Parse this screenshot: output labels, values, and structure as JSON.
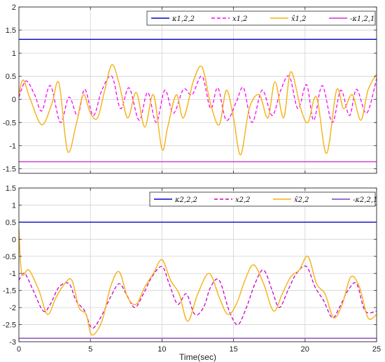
{
  "chart_data": [
    {
      "type": "line",
      "xlim": [
        0,
        25
      ],
      "ylim": [
        -1.6,
        2
      ],
      "xticks": [
        0,
        5,
        10,
        15,
        20,
        25
      ],
      "yticks": [
        -1.5,
        -1,
        -0.5,
        0,
        0.5,
        1,
        1.5,
        2
      ],
      "ytick_labels": [
        "-1.5",
        "-1",
        "-0.5",
        "0",
        "0.5",
        "1",
        "1.5",
        "2"
      ],
      "grid": true,
      "legend_position": "top-right",
      "xlabel": "",
      "series": [
        {
          "name": "κ1,2,2",
          "style": "solid",
          "color": "#0000cc",
          "x": [
            0,
            25
          ],
          "y": [
            1.3,
            1.3
          ]
        },
        {
          "name": "x1,2",
          "style": "dashed",
          "color": "#ff00ff",
          "x": [
            0,
            0.5,
            1.1,
            1.6,
            2.2,
            2.9,
            3.5,
            4.1,
            4.6,
            5.2,
            5.8,
            6.5,
            7.1,
            7.7,
            8.4,
            9.0,
            9.6,
            10.2,
            10.8,
            11.5,
            12.1,
            12.8,
            13.4,
            13.9,
            14.5,
            15.2,
            15.7,
            16.3,
            17.0,
            17.7,
            18.3,
            18.9,
            19.5,
            20.1,
            20.6,
            21.2,
            21.9,
            22.5,
            23.1,
            23.6,
            24.3,
            25.0
          ],
          "y": [
            0.05,
            0.4,
            0.1,
            -0.25,
            0.3,
            -0.5,
            0.05,
            -0.35,
            0.22,
            -0.35,
            0.2,
            0.5,
            -0.2,
            0.25,
            -0.45,
            0.15,
            -0.5,
            0.2,
            -0.3,
            0.22,
            0.1,
            0.5,
            -0.2,
            0.25,
            -0.45,
            -0.05,
            0.25,
            -0.5,
            0.2,
            -0.35,
            0.2,
            0.5,
            -0.2,
            0.32,
            -0.45,
            0.3,
            -0.5,
            0.2,
            -0.35,
            0.22,
            -0.3,
            0.45
          ]
        },
        {
          "name": "x̂1,2",
          "style": "solid",
          "color": "#f5b114",
          "x": [
            0,
            0.3,
            0.8,
            1.6,
            2.3,
            2.8,
            3.4,
            4.0,
            4.5,
            5.0,
            5.5,
            6.0,
            6.5,
            7.0,
            7.6,
            8.2,
            8.8,
            9.4,
            10.0,
            10.4,
            11.0,
            11.5,
            12.2,
            12.8,
            13.4,
            14.0,
            14.5,
            15.0,
            15.5,
            16.1,
            16.8,
            17.4,
            17.9,
            18.5,
            19.0,
            19.7,
            20.2,
            20.8,
            21.5,
            22.2,
            22.7,
            23.3,
            23.9,
            24.4,
            25.0
          ],
          "y": [
            0.1,
            0.42,
            0.0,
            -0.55,
            -0.1,
            0.35,
            -1.12,
            -0.55,
            0.1,
            -0.3,
            -0.4,
            0.2,
            0.75,
            0.35,
            -0.4,
            0.15,
            -0.6,
            0.1,
            -1.08,
            -0.6,
            0.1,
            -0.4,
            0.4,
            0.7,
            -0.1,
            -0.55,
            0.2,
            -0.4,
            -1.2,
            -0.2,
            0.1,
            -0.4,
            0.38,
            -0.4,
            0.6,
            -0.2,
            -0.5,
            0.05,
            -1.17,
            0.2,
            -0.2,
            0.1,
            -0.45,
            0.2,
            0.55
          ]
        },
        {
          "name": "-κ1,2,1",
          "style": "solid",
          "color": "#cc33cc",
          "x": [
            0,
            25
          ],
          "y": [
            -1.35,
            -1.35
          ]
        }
      ]
    },
    {
      "type": "line",
      "xlim": [
        0,
        25
      ],
      "ylim": [
        -3,
        1.5
      ],
      "xticks": [
        0,
        5,
        10,
        15,
        20,
        25
      ],
      "xtick_labels": [
        "0",
        "5",
        "10",
        "15",
        "20",
        "25"
      ],
      "yticks": [
        -3,
        -2.5,
        -2,
        -1.5,
        -1,
        -0.5,
        0,
        0.5,
        1,
        1.5
      ],
      "ytick_labels": [
        "-3",
        "-2.5",
        "-2",
        "-1.5",
        "-1",
        "-0.5",
        "0",
        "0.5",
        "1",
        "1.5"
      ],
      "grid": true,
      "legend_position": "top-right",
      "xlabel": "Time(sec)",
      "series": [
        {
          "name": "κ2,2,2",
          "style": "solid",
          "color": "#0000cc",
          "x": [
            0,
            25
          ],
          "y": [
            0.5,
            0.5
          ]
        },
        {
          "name": "x2,2",
          "style": "dashed",
          "color": "#cc00cc",
          "x": [
            0,
            0.4,
            1.0,
            1.7,
            2.2,
            2.8,
            3.5,
            4.0,
            4.6,
            5.1,
            5.7,
            6.4,
            7.0,
            7.5,
            8.1,
            8.7,
            9.3,
            10.0,
            10.5,
            11.1,
            11.7,
            12.3,
            12.9,
            13.4,
            14.0,
            14.7,
            15.3,
            15.9,
            16.5,
            17.1,
            17.7,
            18.2,
            18.8,
            19.4,
            20.1,
            20.7,
            21.3,
            21.9,
            22.4,
            23.0,
            23.6,
            24.2,
            25.0
          ],
          "y": [
            -1.2,
            -1.0,
            -1.5,
            -2.1,
            -1.9,
            -1.4,
            -1.3,
            -1.8,
            -2.1,
            -2.6,
            -2.3,
            -1.7,
            -1.3,
            -1.6,
            -2.0,
            -1.6,
            -1.1,
            -0.8,
            -1.3,
            -1.9,
            -1.6,
            -2.2,
            -2.0,
            -1.4,
            -1.2,
            -2.1,
            -2.5,
            -2.0,
            -1.3,
            -0.9,
            -1.5,
            -2.0,
            -1.5,
            -1.0,
            -0.8,
            -1.4,
            -1.8,
            -2.3,
            -2.0,
            -1.5,
            -1.3,
            -2.1,
            -2.1
          ]
        },
        {
          "name": "x̂2,2",
          "style": "solid",
          "color": "#f5b114",
          "x": [
            0,
            0.2,
            0.7,
            1.4,
            2.0,
            2.6,
            3.2,
            3.7,
            4.2,
            4.7,
            5.1,
            5.8,
            6.4,
            7.0,
            7.6,
            8.2,
            8.8,
            9.4,
            10.0,
            10.6,
            11.2,
            11.8,
            12.5,
            13.3,
            14.0,
            14.6,
            15.2,
            15.8,
            16.4,
            17.1,
            17.8,
            18.4,
            19.0,
            19.6,
            20.2,
            20.8,
            21.4,
            22.0,
            22.6,
            23.2,
            23.8,
            24.4,
            25.0
          ],
          "y": [
            0.3,
            -1.0,
            -0.9,
            -1.5,
            -2.2,
            -1.7,
            -1.3,
            -1.2,
            -2.0,
            -2.2,
            -2.8,
            -2.4,
            -1.4,
            -0.95,
            -1.7,
            -1.9,
            -1.4,
            -1.0,
            -0.6,
            -1.2,
            -1.6,
            -2.4,
            -1.6,
            -1.0,
            -1.7,
            -2.2,
            -1.9,
            -1.2,
            -0.75,
            -1.3,
            -2.1,
            -1.6,
            -1.1,
            -0.9,
            -0.5,
            -1.3,
            -1.6,
            -2.3,
            -1.9,
            -1.1,
            -1.4,
            -2.3,
            -2.2
          ]
        },
        {
          "name": "-κ2,2,1",
          "style": "solid",
          "color": "#7f3fbf",
          "x": [
            0,
            25
          ],
          "y": [
            -2.9,
            -2.9
          ]
        }
      ]
    }
  ]
}
